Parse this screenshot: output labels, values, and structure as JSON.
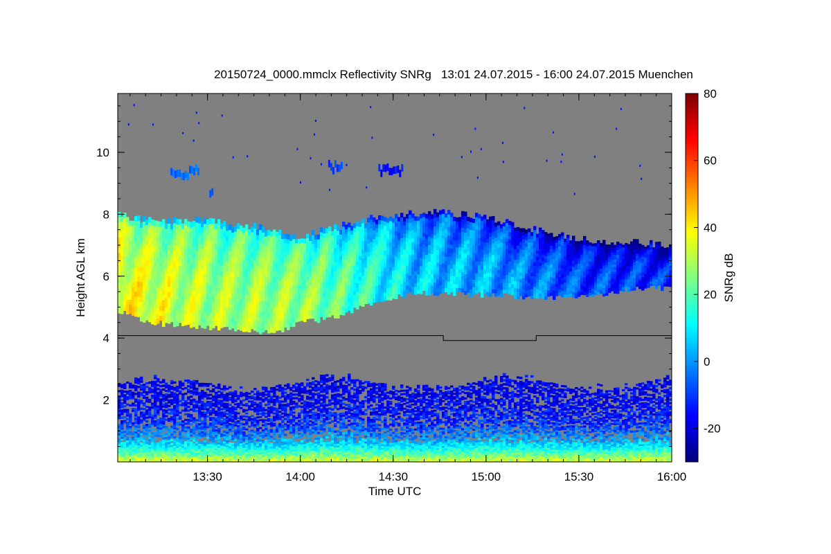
{
  "chart_data": {
    "type": "heatmap",
    "title": "20150724_0000.mmclx Reflectivity SNRg   13:01 24.07.2015 - 16:00 24.07.2015 Muenchen",
    "xlabel": "Time UTC",
    "ylabel": "Height AGL km",
    "colorbar_label": "SNRg dB",
    "x_range_utc": [
      "13:01",
      "16:00"
    ],
    "x_range_hours": [
      13.0167,
      16.0
    ],
    "y_range_km": [
      0.0,
      11.9
    ],
    "color_range_db": [
      -30,
      80
    ],
    "x_ticks": [
      {
        "label": "13:30",
        "value": 13.5
      },
      {
        "label": "14:00",
        "value": 14.0
      },
      {
        "label": "14:30",
        "value": 14.5
      },
      {
        "label": "15:00",
        "value": 15.0
      },
      {
        "label": "15:30",
        "value": 15.5
      },
      {
        "label": "16:00",
        "value": 16.0
      }
    ],
    "y_ticks": [
      {
        "label": "2",
        "value": 2
      },
      {
        "label": "4",
        "value": 4
      },
      {
        "label": "6",
        "value": 6
      },
      {
        "label": "8",
        "value": 8
      },
      {
        "label": "10",
        "value": 10
      }
    ],
    "colorbar_ticks": [
      {
        "label": "-20",
        "value": -20
      },
      {
        "label": "0",
        "value": 0
      },
      {
        "label": "20",
        "value": 20
      },
      {
        "label": "40",
        "value": 40
      },
      {
        "label": "60",
        "value": 60
      },
      {
        "label": "80",
        "value": 80
      }
    ],
    "colormap": [
      "#00007f",
      "#0000ff",
      "#0080ff",
      "#00ffff",
      "#80ff80",
      "#ffff00",
      "#ff8000",
      "#ff0000",
      "#7f0000"
    ],
    "background_color": "#808080",
    "mode_boundary_km": [
      {
        "t": 13.0167,
        "h": 4.08
      },
      {
        "t": 14.77,
        "h": 4.08
      },
      {
        "t": 14.77,
        "h": 3.92
      },
      {
        "t": 15.27,
        "h": 3.92
      },
      {
        "t": 15.27,
        "h": 4.08
      },
      {
        "t": 16.0,
        "h": 4.08
      }
    ],
    "cloud_layer": {
      "top_km": [
        {
          "t": 13.02,
          "h": 7.95
        },
        {
          "t": 13.2,
          "h": 7.8
        },
        {
          "t": 13.5,
          "h": 7.8
        },
        {
          "t": 13.75,
          "h": 7.6
        },
        {
          "t": 13.9,
          "h": 7.4
        },
        {
          "t": 14.0,
          "h": 7.3
        },
        {
          "t": 14.2,
          "h": 7.6
        },
        {
          "t": 14.4,
          "h": 7.9
        },
        {
          "t": 14.7,
          "h": 8.1
        },
        {
          "t": 15.0,
          "h": 7.9
        },
        {
          "t": 15.25,
          "h": 7.5
        },
        {
          "t": 15.5,
          "h": 7.2
        },
        {
          "t": 15.75,
          "h": 7.1
        },
        {
          "t": 16.0,
          "h": 7.0
        }
      ],
      "base_km": [
        {
          "t": 13.02,
          "h": 4.9
        },
        {
          "t": 13.2,
          "h": 4.5
        },
        {
          "t": 13.5,
          "h": 4.35
        },
        {
          "t": 13.85,
          "h": 4.15
        },
        {
          "t": 14.0,
          "h": 4.5
        },
        {
          "t": 14.2,
          "h": 4.7
        },
        {
          "t": 14.4,
          "h": 5.2
        },
        {
          "t": 14.6,
          "h": 5.45
        },
        {
          "t": 15.0,
          "h": 5.4
        },
        {
          "t": 15.25,
          "h": 5.3
        },
        {
          "t": 15.5,
          "h": 5.35
        },
        {
          "t": 15.75,
          "h": 5.55
        },
        {
          "t": 16.0,
          "h": 5.65
        }
      ],
      "snr_db": [
        {
          "t": 13.02,
          "v": 38
        },
        {
          "t": 13.5,
          "v": 30
        },
        {
          "t": 14.0,
          "v": 28
        },
        {
          "t": 14.3,
          "v": 18
        },
        {
          "t": 14.6,
          "v": 6
        },
        {
          "t": 15.0,
          "v": 2
        },
        {
          "t": 15.5,
          "v": -8
        },
        {
          "t": 16.0,
          "v": -12
        }
      ]
    },
    "boundary_layer": {
      "top_km": 2.8,
      "snr_near_surface_db": 35,
      "snr_upper_db": -18
    },
    "upper_echoes": [
      {
        "t0": 13.3,
        "t1": 13.45,
        "h": 9.35,
        "v": -5
      },
      {
        "t0": 14.15,
        "t1": 14.22,
        "h": 9.55,
        "v": -10
      },
      {
        "t0": 14.42,
        "t1": 14.55,
        "h": 9.4,
        "v": -15
      },
      {
        "t0": 13.51,
        "t1": 13.53,
        "h": 8.75,
        "v": -10
      }
    ]
  }
}
